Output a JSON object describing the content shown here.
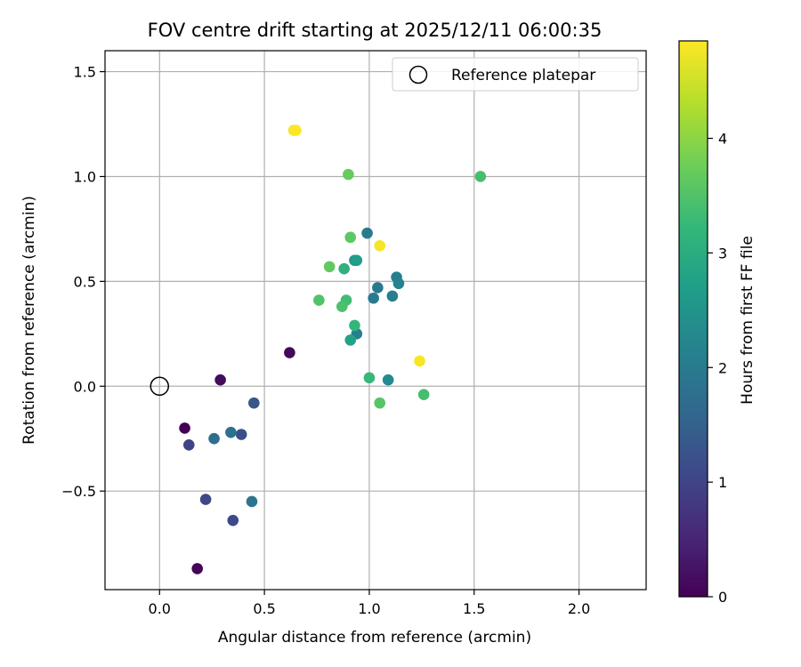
{
  "chart_data": {
    "type": "scatter",
    "title": "FOV centre drift starting at 2025/12/11 06:00:35",
    "xlabel": "Angular distance from reference (arcmin)",
    "ylabel": "Rotation from reference (arcmin)",
    "xlim": [
      -0.26,
      2.32
    ],
    "ylim": [
      -0.97,
      1.6
    ],
    "xticks": [
      0.0,
      0.5,
      1.0,
      1.5,
      2.0
    ],
    "xtick_labels": [
      "0.0",
      "0.5",
      "1.0",
      "1.5",
      "2.0"
    ],
    "yticks": [
      -0.5,
      0.0,
      0.5,
      1.0,
      1.5
    ],
    "ytick_labels": [
      "−0.5",
      "0.0",
      "0.5",
      "1.0",
      "1.5"
    ],
    "grid": true,
    "legend": {
      "position": "top-right",
      "entries": [
        "Reference platepar"
      ]
    },
    "reference_point": {
      "x": 0.0,
      "y": 0.0,
      "label": "Reference platepar"
    },
    "colorbar": {
      "label": "Hours from first FF file",
      "range": [
        0,
        4.85
      ],
      "ticks": [
        0,
        1,
        2,
        3,
        4
      ],
      "tick_labels": [
        "0",
        "1",
        "2",
        "3",
        "4"
      ],
      "colormap": "viridis"
    },
    "points": [
      {
        "x": 0.12,
        "y": -0.2,
        "hours": 0.0
      },
      {
        "x": 0.29,
        "y": 0.03,
        "hours": 0.15
      },
      {
        "x": 0.18,
        "y": -0.87,
        "hours": 0.05
      },
      {
        "x": 0.62,
        "y": 0.16,
        "hours": 0.1
      },
      {
        "x": 0.14,
        "y": -0.28,
        "hours": 1.0
      },
      {
        "x": 0.22,
        "y": -0.54,
        "hours": 1.05
      },
      {
        "x": 0.35,
        "y": -0.64,
        "hours": 1.1
      },
      {
        "x": 0.39,
        "y": -0.23,
        "hours": 1.2
      },
      {
        "x": 0.45,
        "y": -0.08,
        "hours": 1.3
      },
      {
        "x": 0.26,
        "y": -0.25,
        "hours": 1.75
      },
      {
        "x": 0.34,
        "y": -0.22,
        "hours": 1.8
      },
      {
        "x": 0.44,
        "y": -0.55,
        "hours": 1.9
      },
      {
        "x": 0.99,
        "y": 0.73,
        "hours": 2.0
      },
      {
        "x": 1.04,
        "y": 0.47,
        "hours": 1.95
      },
      {
        "x": 1.02,
        "y": 0.42,
        "hours": 2.0
      },
      {
        "x": 1.11,
        "y": 0.43,
        "hours": 2.05
      },
      {
        "x": 1.13,
        "y": 0.52,
        "hours": 2.1
      },
      {
        "x": 1.14,
        "y": 0.49,
        "hours": 2.15
      },
      {
        "x": 0.94,
        "y": 0.25,
        "hours": 2.1
      },
      {
        "x": 1.09,
        "y": 0.03,
        "hours": 2.3
      },
      {
        "x": 0.93,
        "y": 0.6,
        "hours": 2.55
      },
      {
        "x": 0.94,
        "y": 0.6,
        "hours": 2.7
      },
      {
        "x": 0.91,
        "y": 0.22,
        "hours": 2.8
      },
      {
        "x": 0.88,
        "y": 0.56,
        "hours": 3.1
      },
      {
        "x": 0.93,
        "y": 0.29,
        "hours": 3.2
      },
      {
        "x": 1.0,
        "y": 0.04,
        "hours": 3.25
      },
      {
        "x": 1.26,
        "y": -0.04,
        "hours": 3.4
      },
      {
        "x": 0.89,
        "y": 0.41,
        "hours": 3.35
      },
      {
        "x": 0.87,
        "y": 0.38,
        "hours": 3.45
      },
      {
        "x": 0.76,
        "y": 0.41,
        "hours": 3.5
      },
      {
        "x": 1.05,
        "y": -0.08,
        "hours": 3.55
      },
      {
        "x": 1.53,
        "y": 1.0,
        "hours": 3.4
      },
      {
        "x": 0.91,
        "y": 0.71,
        "hours": 3.6
      },
      {
        "x": 0.81,
        "y": 0.57,
        "hours": 3.65
      },
      {
        "x": 0.9,
        "y": 1.01,
        "hours": 3.7
      },
      {
        "x": 1.05,
        "y": 0.67,
        "hours": 4.8
      },
      {
        "x": 1.24,
        "y": 0.12,
        "hours": 4.8
      },
      {
        "x": 0.64,
        "y": 1.22,
        "hours": 4.75
      },
      {
        "x": 0.65,
        "y": 1.22,
        "hours": 4.85
      }
    ]
  }
}
